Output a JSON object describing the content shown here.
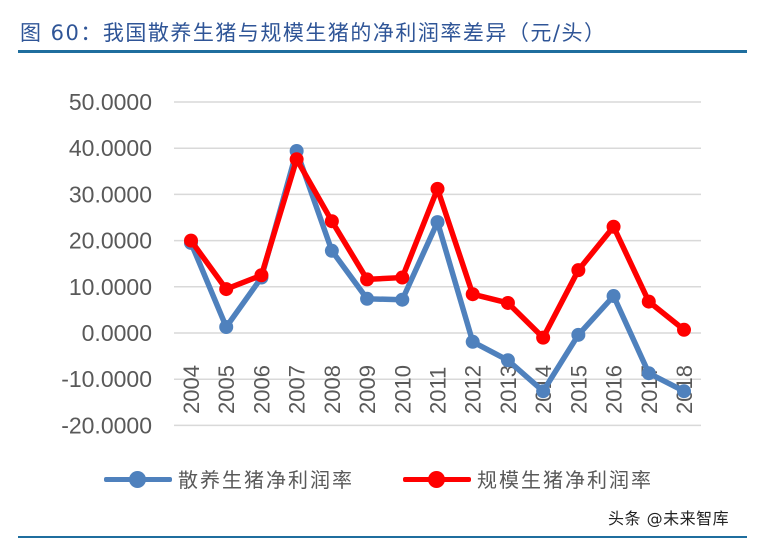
{
  "header": {
    "title": "图 60：我国散养生猪与规模生猪的净利润率差异（元/头）"
  },
  "watermark": "头条 @未来智库",
  "colors": {
    "title": "#2f5597",
    "rule": "#1f6e9e",
    "series_smallholder": "#4f81bd",
    "series_scale": "#ff0000",
    "grid": "#d9d9d9",
    "tick_text": "#595959"
  },
  "legend": {
    "items": [
      {
        "label": "散养生猪净利润率",
        "color": "#4f81bd",
        "icon": "line-with-circle-marker-icon"
      },
      {
        "label": "规模生猪净利润率",
        "color": "#ff0000",
        "icon": "line-with-circle-marker-icon"
      }
    ]
  },
  "chart_data": {
    "type": "line",
    "title": "图 60：我国散养生猪与规模生猪的净利润率差异（元/头）",
    "xlabel": "",
    "ylabel": "",
    "categories": [
      "2004",
      "2005",
      "2006",
      "2007",
      "2008",
      "2009",
      "2010",
      "2011",
      "2012",
      "2013",
      "2014",
      "2015",
      "2016",
      "2017",
      "2018"
    ],
    "series": [
      {
        "name": "散养生猪净利润率",
        "color": "#4f81bd",
        "values": [
          19.5,
          1.3,
          12.0,
          39.4,
          17.8,
          7.4,
          7.2,
          24.0,
          -1.9,
          -5.9,
          -12.6,
          -0.4,
          8.0,
          -8.7,
          -12.6
        ]
      },
      {
        "name": "规模生猪净利润率",
        "color": "#ff0000",
        "values": [
          20.0,
          9.5,
          12.5,
          37.6,
          24.2,
          11.6,
          12.0,
          31.2,
          8.4,
          6.5,
          -1.0,
          13.6,
          23.0,
          6.8,
          0.7
        ]
      }
    ],
    "ylim": [
      -20,
      50
    ],
    "yticks": [
      50,
      40,
      30,
      20,
      10,
      0,
      -10,
      -20
    ],
    "ytick_labels": [
      "50.0000",
      "40.0000",
      "30.0000",
      "20.0000",
      "10.0000",
      "0.0000",
      "-10.0000",
      "-20.0000"
    ],
    "grid": true,
    "legend_position": "bottom",
    "x_tick_rotation": -90,
    "markers": "circle"
  }
}
